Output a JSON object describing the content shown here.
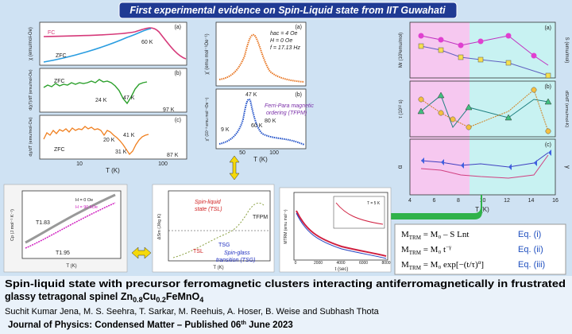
{
  "banner": "First experimental evidence on Spin-Liquid state from IIT Guwahati",
  "left_plots": {
    "a": {
      "label": "(a)",
      "ylabel": "χ (emu/mol-Oe)",
      "fc": "FC",
      "zfc": "ZFC",
      "notes": [
        "60 K"
      ]
    },
    "b": {
      "label": "(b)",
      "ylabel": "d(χT)/dT (emu/mol-Oe)",
      "zfc": "ZFC",
      "notes": [
        "24 K",
        "47 K",
        "97 K"
      ]
    },
    "c": {
      "label": "(c)",
      "ylabel": "dχ/dT (emu/mol-Oe)",
      "zfc": "ZFC",
      "notes": [
        "20 K",
        "41 K",
        "31 K",
        "87 K"
      ]
    },
    "xticks": [
      "10",
      "100"
    ],
    "xlabel": "T (K)"
  },
  "ac_plots": {
    "a": {
      "label": "(a)",
      "ylabel": "χ′ (emu mol⁻¹Oe⁻¹)",
      "params": [
        "hac = 4 Oe",
        "H = 0 Oe",
        "f = 17.13 Hz"
      ]
    },
    "b": {
      "label": "(b)",
      "ylabel": "χ″ (10⁻³ emu mol⁻¹Oe⁻¹)",
      "ordering": [
        "Ferri-Para magnetic",
        "ordering (TFPM)"
      ],
      "notes": [
        "47 K",
        "9 K",
        "60 K",
        "80 K"
      ]
    },
    "xticks": [
      "50",
      "100"
    ],
    "xlabel": "T (K)"
  },
  "relax_plots": {
    "labels": [
      "(a)",
      "(b)",
      "(c)"
    ],
    "ylabels_left": [
      "Mr (10³emu/mol)",
      "τ (10¹² s)",
      "α"
    ],
    "ylabels_right": [
      "S (emu/mol)",
      "dS/dT (emu/mol-K)",
      "γ"
    ],
    "xticks": [
      "4",
      "6",
      "8",
      "10",
      "12",
      "14",
      "16"
    ],
    "xlabel": "T (K)"
  },
  "heat_plot": {
    "ylabel": "Cp (J mol⁻¹ K⁻¹)",
    "xlabel": "T (K)",
    "notes": [
      "T1.83",
      "T1.95",
      "H = 0 Oe",
      "H = 90 kOe"
    ]
  },
  "entropy_plot": {
    "ylabel": "ΔSm (J/kg K)",
    "xlabel": "T (K)",
    "sl": [
      "Spin-liquid",
      "state (TSL)"
    ],
    "notes": [
      "TFPM",
      "TSL",
      "TSG"
    ],
    "sg": [
      "Spin-glass",
      "transition (TSG)"
    ]
  },
  "decay_plot": {
    "ylabel": "MTRM (emu mol⁻¹)",
    "xlabel": "t (sec)",
    "note": "T = 5 K",
    "xticks": [
      "0",
      "2000",
      "4000",
      "6000",
      "8000"
    ]
  },
  "equations": [
    {
      "lhs": "M",
      "sub": "TRM",
      "rhs": " = M₀ – S Lnt",
      "tag": "Eq. (i)"
    },
    {
      "lhs": "M",
      "sub": "TRM",
      "rhs": " = M₀ t",
      "sup": "−γ",
      "tag": "Eq. (ii)"
    },
    {
      "lhs": "M",
      "sub": "TRM",
      "rhs": " = M₀ exp[−(t/τ)",
      "sup": "α",
      "end": "]",
      "tag": "Eq. (iii)"
    }
  ],
  "paper": {
    "title_line1": "Spin-liquid state with precursor ferromagnetic clusters interacting antiferromagnetically in frustrated",
    "title_line2": [
      "glassy tetragonal spinel Zn",
      "0.8",
      "Cu",
      "0.2",
      "FeMnO",
      "4"
    ],
    "authors": "Suchit Kumar Jena, M. S. Seehra, T. Sarkar, M. Reehuis, A. Hoser, B. Weise and Subhash Thota",
    "journal": [
      "Journal of Physics: Condensed Matter – Published 06",
      "th",
      " June 2023"
    ]
  }
}
